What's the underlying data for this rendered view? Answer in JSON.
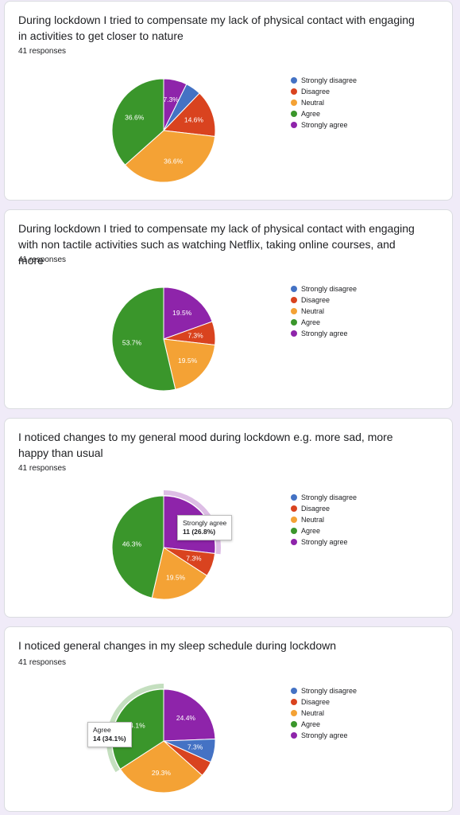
{
  "charts": [
    {
      "title": "During lockdown I tried to compensate my lack of physical contact with engaging in activities to get closer to nature",
      "responses": "41 responses"
    },
    {
      "title": "During lockdown I tried to compensate my lack of physical contact with engaging with non tactile activities such as watching Netflix, taking online courses, and more",
      "responses": "41 responses"
    },
    {
      "title": "I noticed changes to my general mood during lockdown e.g. more sad, more happy than usual",
      "responses": "41 responses",
      "tooltip": {
        "label": "Strongly agree",
        "value": "11 (26.8%)"
      }
    },
    {
      "title": "I noticed general changes in my sleep schedule during lockdown",
      "responses": "41 responses",
      "tooltip": {
        "label": "Agree",
        "value": "14 (34.1%)"
      }
    }
  ],
  "legend": [
    {
      "label": "Strongly disagree",
      "color": "#4472c4"
    },
    {
      "label": "Disagree",
      "color": "#d9431f"
    },
    {
      "label": "Neutral",
      "color": "#f4a235"
    },
    {
      "label": "Agree",
      "color": "#3a962b"
    },
    {
      "label": "Strongly agree",
      "color": "#8e24aa"
    }
  ],
  "chart_data": [
    {
      "type": "pie",
      "categories": [
        "Strongly disagree",
        "Disagree",
        "Neutral",
        "Agree",
        "Strongly agree"
      ],
      "values": [
        2,
        6,
        15,
        15,
        3
      ],
      "labels": [
        "",
        "14.6%",
        "36.6%",
        "36.6%",
        "7.3%"
      ]
    },
    {
      "type": "pie",
      "categories": [
        "Strongly disagree",
        "Disagree",
        "Neutral",
        "Agree",
        "Strongly agree"
      ],
      "values": [
        0,
        3,
        8,
        22,
        8
      ],
      "labels": [
        "",
        "7.3%",
        "19.5%",
        "53.7%",
        "19.5%"
      ]
    },
    {
      "type": "pie",
      "categories": [
        "Strongly disagree",
        "Disagree",
        "Neutral",
        "Agree",
        "Strongly agree"
      ],
      "values": [
        0,
        3,
        8,
        19,
        11
      ],
      "labels": [
        "",
        "7.3%",
        "19.5%",
        "46.3%",
        ""
      ],
      "highlight": "Strongly agree"
    },
    {
      "type": "pie",
      "categories": [
        "Strongly disagree",
        "Disagree",
        "Neutral",
        "Agree",
        "Strongly agree"
      ],
      "values": [
        3,
        2,
        12,
        14,
        10
      ],
      "labels": [
        "7.3%",
        "",
        "29.3%",
        "34.1%",
        "24.4%"
      ],
      "highlight": "Agree"
    }
  ]
}
